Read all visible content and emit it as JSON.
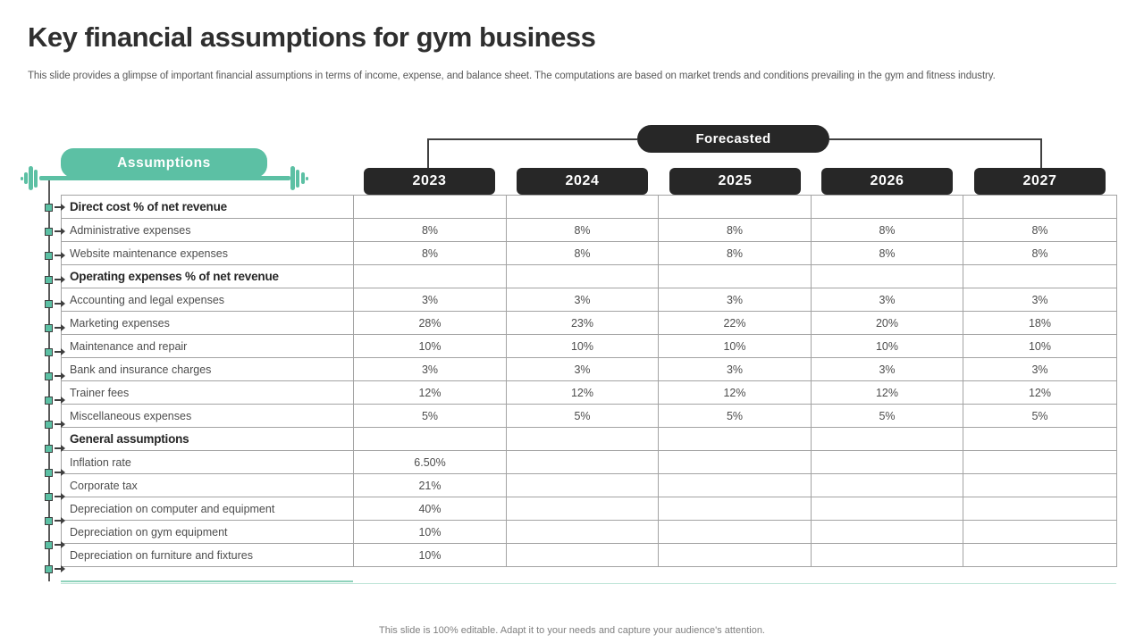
{
  "slide": {
    "title": "Key financial assumptions for gym business",
    "subtitle": "This slide provides a glimpse of important financial assumptions in terms of income, expense, and balance sheet. The computations are based on market trends and conditions prevailing in the gym and fitness industry.",
    "footer": "This slide is 100% editable. Adapt it to your needs and capture your audience's attention."
  },
  "header": {
    "forecasted_label": "Forecasted",
    "assumptions_label": "Assumptions"
  },
  "colors": {
    "teal_accent": "#5cc0a4",
    "dark_pill": "#272727"
  },
  "table": {
    "years": [
      "2023",
      "2024",
      "2025",
      "2026",
      "2027"
    ],
    "rows": [
      {
        "label": "Direct cost % of net revenue",
        "bold": true,
        "values": [
          "",
          "",
          "",
          "",
          ""
        ]
      },
      {
        "label": "Administrative expenses",
        "bold": false,
        "values": [
          "8%",
          "8%",
          "8%",
          "8%",
          "8%"
        ]
      },
      {
        "label": "Website maintenance expenses",
        "bold": false,
        "values": [
          "8%",
          "8%",
          "8%",
          "8%",
          "8%"
        ]
      },
      {
        "label": "Operating expenses % of net revenue",
        "bold": true,
        "values": [
          "",
          "",
          "",
          "",
          ""
        ]
      },
      {
        "label": "Accounting and legal expenses",
        "bold": false,
        "values": [
          "3%",
          "3%",
          "3%",
          "3%",
          "3%"
        ]
      },
      {
        "label": "Marketing expenses",
        "bold": false,
        "values": [
          "28%",
          "23%",
          "22%",
          "20%",
          "18%"
        ]
      },
      {
        "label": "Maintenance and repair",
        "bold": false,
        "values": [
          "10%",
          "10%",
          "10%",
          "10%",
          "10%"
        ]
      },
      {
        "label": "Bank and insurance charges",
        "bold": false,
        "values": [
          "3%",
          "3%",
          "3%",
          "3%",
          "3%"
        ]
      },
      {
        "label": "Trainer fees",
        "bold": false,
        "values": [
          "12%",
          "12%",
          "12%",
          "12%",
          "12%"
        ]
      },
      {
        "label": "Miscellaneous expenses",
        "bold": false,
        "values": [
          "5%",
          "5%",
          "5%",
          "5%",
          "5%"
        ]
      },
      {
        "label": "General assumptions",
        "bold": true,
        "values": [
          "",
          "",
          "",
          "",
          ""
        ]
      },
      {
        "label": "Inflation rate",
        "bold": false,
        "values": [
          "6.50%",
          "",
          "",
          "",
          ""
        ]
      },
      {
        "label": "Corporate tax",
        "bold": false,
        "values": [
          "21%",
          "",
          "",
          "",
          ""
        ]
      },
      {
        "label": "Depreciation on computer and equipment",
        "bold": false,
        "values": [
          "40%",
          "",
          "",
          "",
          ""
        ]
      },
      {
        "label": "Depreciation on gym equipment",
        "bold": false,
        "values": [
          "10%",
          "",
          "",
          "",
          ""
        ]
      },
      {
        "label": "Depreciation on furniture and fixtures",
        "bold": false,
        "values": [
          "10%",
          "",
          "",
          "",
          ""
        ]
      }
    ]
  }
}
